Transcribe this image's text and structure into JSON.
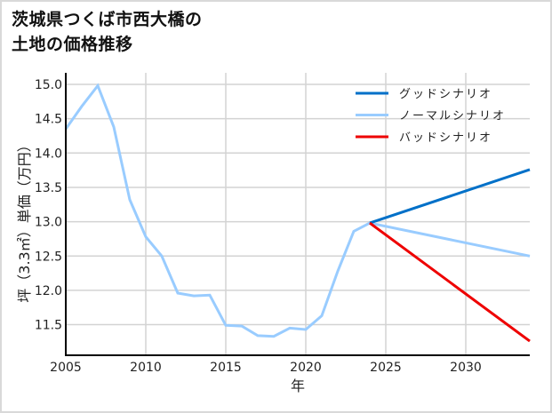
{
  "title_line1": "茨城県つくば市西大橋の",
  "title_line2": "土地の価格推移",
  "chart_data": {
    "type": "line",
    "title": "茨城県つくば市西大橋の土地の価格推移",
    "xlabel": "年",
    "ylabel": "坪（3.3㎡）単価（万円）",
    "xlim": [
      2005,
      2034
    ],
    "ylim": [
      11.05,
      15.1
    ],
    "xticks": [
      2005,
      2010,
      2015,
      2020,
      2025,
      2030
    ],
    "yticks": [
      11.5,
      12.0,
      12.5,
      13.0,
      13.5,
      14.0,
      14.5,
      15.0
    ],
    "ytick_labels": [
      "11.5",
      "12.0",
      "12.5",
      "13.0",
      "13.5",
      "14.0",
      "14.5",
      "15.0"
    ],
    "grid": true,
    "legend_position": "upper right",
    "series": [
      {
        "name": "グッドシナリオ",
        "color": "#0070c8",
        "x": [
          2024,
          2034
        ],
        "values": [
          12.98,
          13.76
        ]
      },
      {
        "name": "ノーマルシナリオ",
        "color": "#99ccff",
        "x": [
          2005,
          2006,
          2007,
          2008,
          2009,
          2010,
          2011,
          2012,
          2013,
          2014,
          2015,
          2016,
          2017,
          2018,
          2019,
          2020,
          2021,
          2022,
          2023,
          2024,
          2034
        ],
        "values": [
          14.35,
          14.68,
          14.98,
          14.38,
          13.32,
          12.78,
          12.5,
          11.96,
          11.92,
          11.93,
          11.49,
          11.48,
          11.34,
          11.33,
          11.45,
          11.43,
          11.63,
          12.28,
          12.86,
          12.98,
          12.5
        ]
      },
      {
        "name": "バッドシナリオ",
        "color": "#ee0000",
        "x": [
          2024,
          2034
        ],
        "values": [
          12.98,
          11.26
        ]
      }
    ]
  }
}
